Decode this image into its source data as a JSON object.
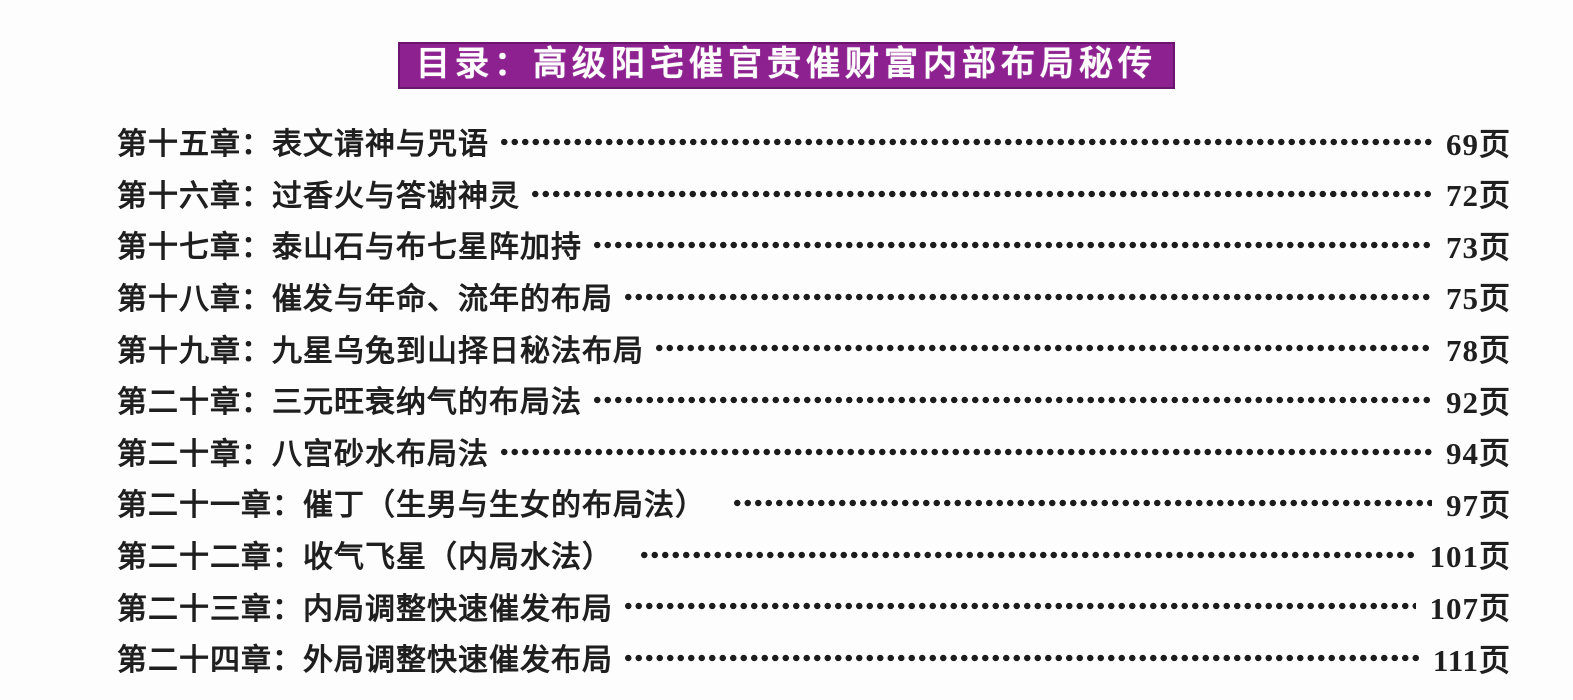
{
  "title": {
    "text": "目录：高级阳宅催官贵催财富内部布局秘传"
  },
  "colors": {
    "title_background": "#8d2190",
    "title_border": "#6b156e",
    "title_text": "#ffffff",
    "body_text": "#1f1f1f",
    "dot_leader": "#1c1c1c",
    "page_background": "#fdfdfd"
  },
  "toc": {
    "entries": [
      {
        "chapter": "第十五章：表文请神与咒语",
        "page": "69页"
      },
      {
        "chapter": "第十六章：过香火与答谢神灵",
        "page": "72页"
      },
      {
        "chapter": "第十七章：泰山石与布七星阵加持",
        "page": "73页"
      },
      {
        "chapter": "第十八章：催发与年命、流年的布局",
        "page": "75页"
      },
      {
        "chapter": "第十九章：九星乌兔到山择日秘法布局",
        "page": "78页"
      },
      {
        "chapter": "第二十章：三元旺衰纳气的布局法",
        "page": "92页"
      },
      {
        "chapter": "第二十章：八宫砂水布局法",
        "page": "94页"
      },
      {
        "chapter": "第二十一章：催丁（生男与生女的布局法）　",
        "page": "97页"
      },
      {
        "chapter": "第二十二章：收气飞星（内局水法）　",
        "page": "101页"
      },
      {
        "chapter": "第二十三章：内局调整快速催发布局",
        "page": "107页"
      },
      {
        "chapter": "第二十四章：外局调整快速催发布局",
        "page": "111页"
      }
    ]
  }
}
